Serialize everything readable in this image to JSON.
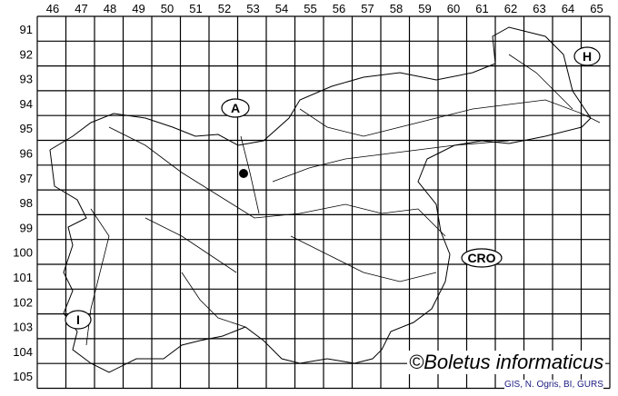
{
  "grid": {
    "columns": [
      "46",
      "47",
      "48",
      "49",
      "50",
      "51",
      "52",
      "53",
      "54",
      "55",
      "56",
      "57",
      "58",
      "59",
      "60",
      "61",
      "62",
      "63",
      "64",
      "65"
    ],
    "rows": [
      "91",
      "92",
      "93",
      "94",
      "95",
      "96",
      "97",
      "98",
      "99",
      "100",
      "101",
      "102",
      "103",
      "104",
      "105"
    ]
  },
  "country_labels": [
    {
      "id": "austria",
      "text": "A"
    },
    {
      "id": "hungary",
      "text": "H"
    },
    {
      "id": "croatia",
      "text": "CRO"
    },
    {
      "id": "italy",
      "text": "I"
    }
  ],
  "occurrence": {
    "grid_column": "53",
    "grid_row": "97"
  },
  "credit": "©Boletus informaticus",
  "source": "GIS, N. Ogris, BI, GURS",
  "colors": {
    "lines": "#000000",
    "source_text": "#1a1a80"
  }
}
